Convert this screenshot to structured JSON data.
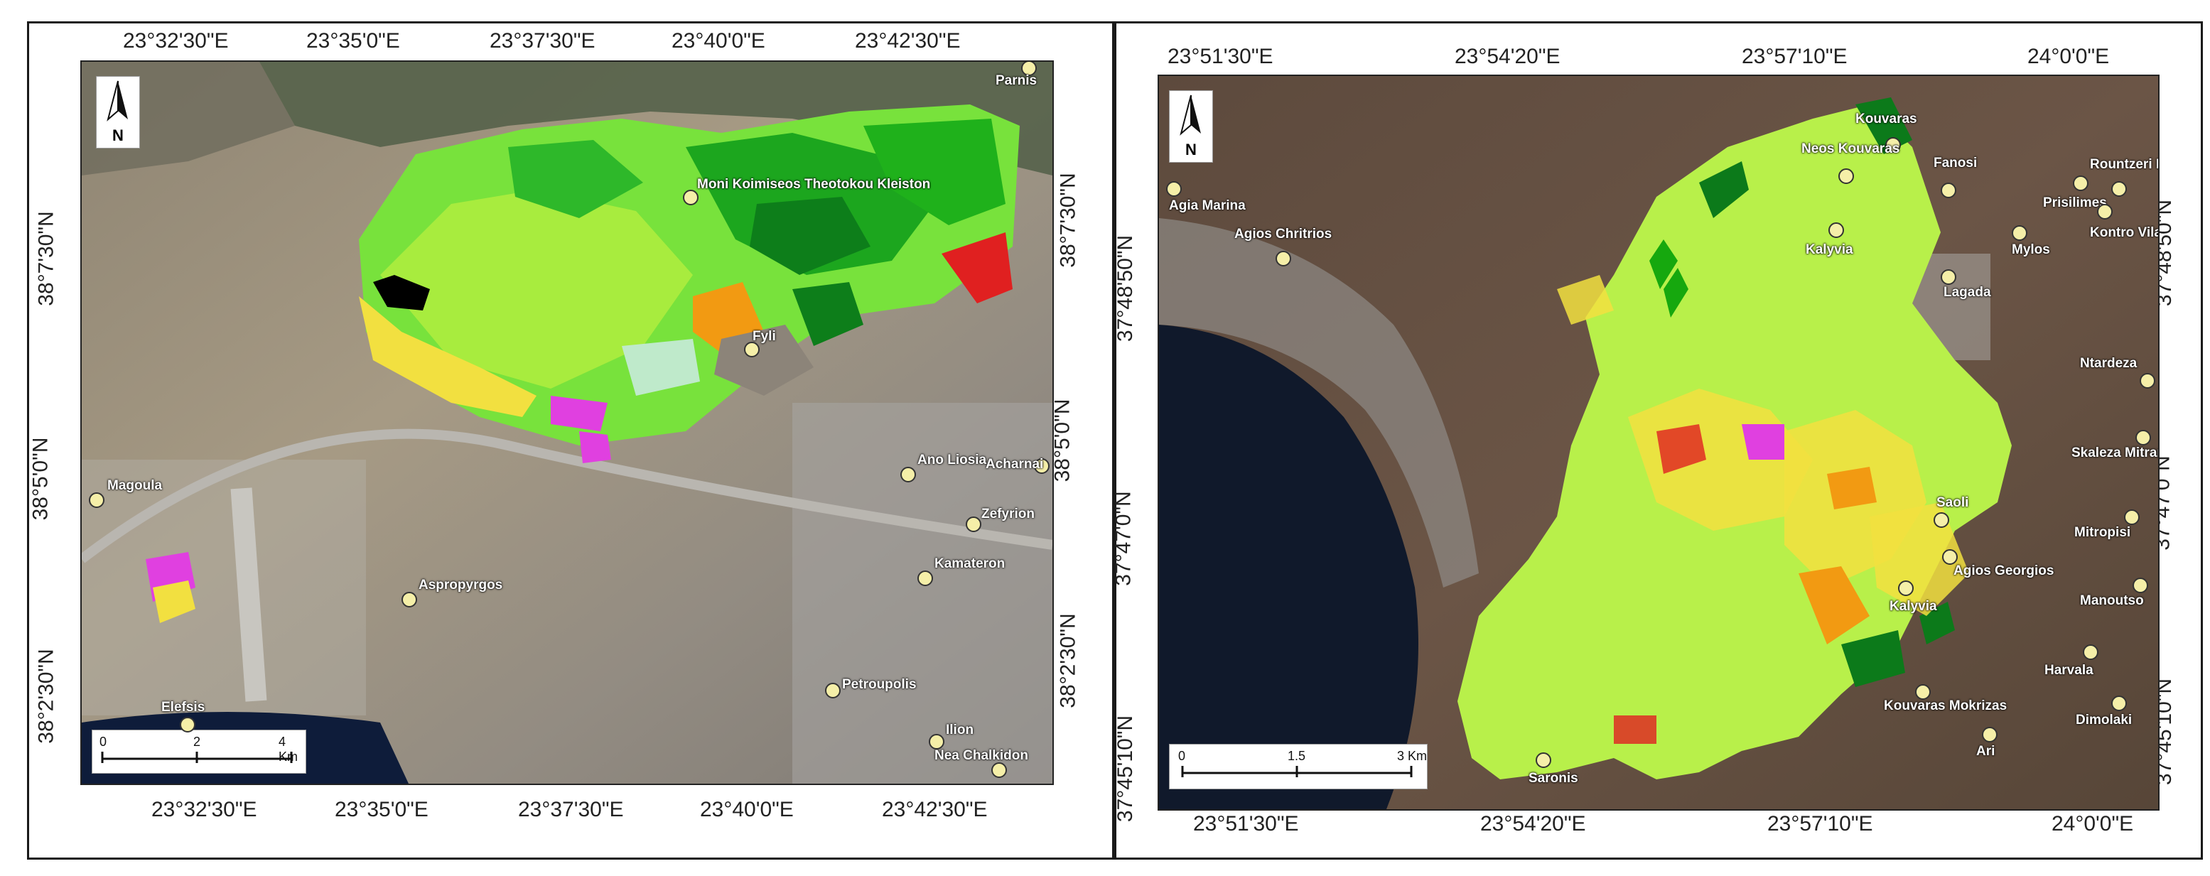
{
  "left_map": {
    "coords_top": [
      "23°32'30\"E",
      "23°35'0\"E",
      "23°37'30\"E",
      "23°40'0\"E",
      "23°42'30\"E"
    ],
    "coords_bottom": [
      "23°32'30\"E",
      "23°35'0\"E",
      "23°37'30\"E",
      "23°40'0\"E",
      "23°42'30\"E"
    ],
    "coords_left": [
      "38°7'30\"N",
      "38°5'0\"N",
      "38°2'30\"N"
    ],
    "coords_right": [
      "38°7'30\"N",
      "38°5'0\"N",
      "38°2'30\"N"
    ],
    "places": [
      "Parnis",
      "Moni Koimiseos Theotokou Kleiston",
      "Fyli",
      "Magoula",
      "Ano Liosia",
      "Acharnai",
      "Zefyrion",
      "Kamateron",
      "Aspropyrgos",
      "Petroupolis",
      "Elefsis",
      "Ilion",
      "Nea Chalkidon"
    ],
    "north_label": "N",
    "scale_labels": [
      "0",
      "2",
      "4 Km"
    ]
  },
  "right_map": {
    "coords_top": [
      "23°51'30\"E",
      "23°54'20\"E",
      "23°57'10\"E",
      "24°0'0\"E"
    ],
    "coords_bottom": [
      "23°51'30\"E",
      "23°54'20\"E",
      "23°57'10\"E",
      "24°0'0\"E"
    ],
    "coords_left": [
      "37°48'50\"N",
      "37°47'0\"N",
      "37°45'10\"N"
    ],
    "coords_right": [
      "37°48'50\"N",
      "37°47'0\"N",
      "37°45'10\"N"
    ],
    "places": [
      "Kouvaras",
      "Neos Kouvaras",
      "Fanosi",
      "Rountzeri Lemprou",
      "Agia Marina",
      "Prisilimes",
      "Kontro Vilari",
      "Agios Chritrios",
      "Kalyvia",
      "Mylos",
      "Lagada",
      "Ntardeza",
      "Skaleza Mitrantoni",
      "Mitropisi",
      "Manoutso",
      "Harvala",
      "Dimolaki",
      "Saronis",
      "Agios Georgios",
      "Kouvaras Mokrizas",
      "Ari",
      "Saoli",
      "Kalyvia"
    ],
    "north_label": "N",
    "scale_labels": [
      "0",
      "1.5",
      "3 Km"
    ]
  },
  "colors": {
    "burned_light": "#b8f04a",
    "burned_mid": "#6fe13a",
    "burned_dark": "#16a80e",
    "forest_dark": "#0c7a1a",
    "orange": "#f29a12",
    "yellow": "#f2e040",
    "red": "#e02020",
    "magenta": "#e040e0",
    "black": "#000000"
  }
}
